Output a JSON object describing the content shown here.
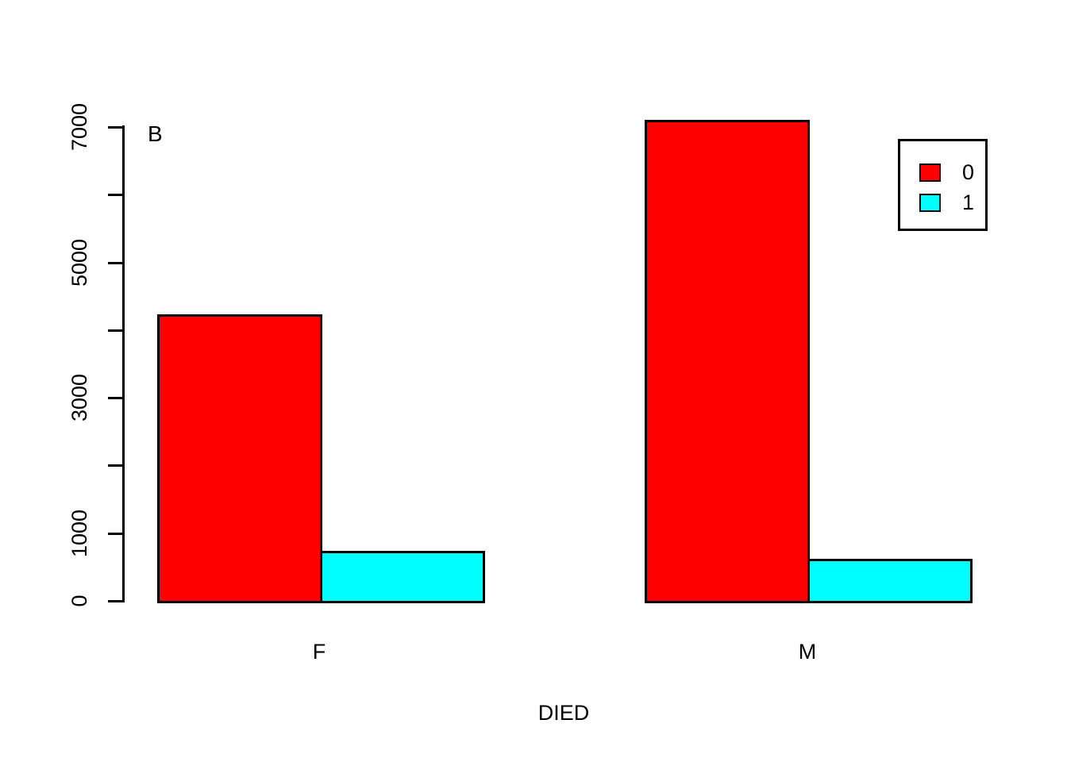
{
  "chart_data": {
    "type": "bar",
    "grouped": true,
    "title": "",
    "panel_label": "B",
    "xlabel": "DIED",
    "ylabel": "",
    "categories": [
      "F",
      "M"
    ],
    "series": [
      {
        "name": "0",
        "color": "#FF0000",
        "values": [
          4230,
          7110
        ]
      },
      {
        "name": "1",
        "color": "#00FFFF",
        "values": [
          740,
          620
        ]
      }
    ],
    "y_axis": {
      "ticks": [
        0,
        1000,
        2000,
        3000,
        4000,
        5000,
        6000,
        7000
      ],
      "labeled_ticks": [
        0,
        1000,
        3000,
        5000,
        7000
      ],
      "tick_label_rotation_deg": 90
    },
    "legend": {
      "position": "top-right",
      "entries": [
        {
          "label": "0",
          "color": "#FF0000"
        },
        {
          "label": "1",
          "color": "#00FFFF"
        }
      ]
    },
    "colors": {
      "bar_edge": "#000000",
      "axis": "#000000",
      "background": "#FFFFFF"
    }
  }
}
